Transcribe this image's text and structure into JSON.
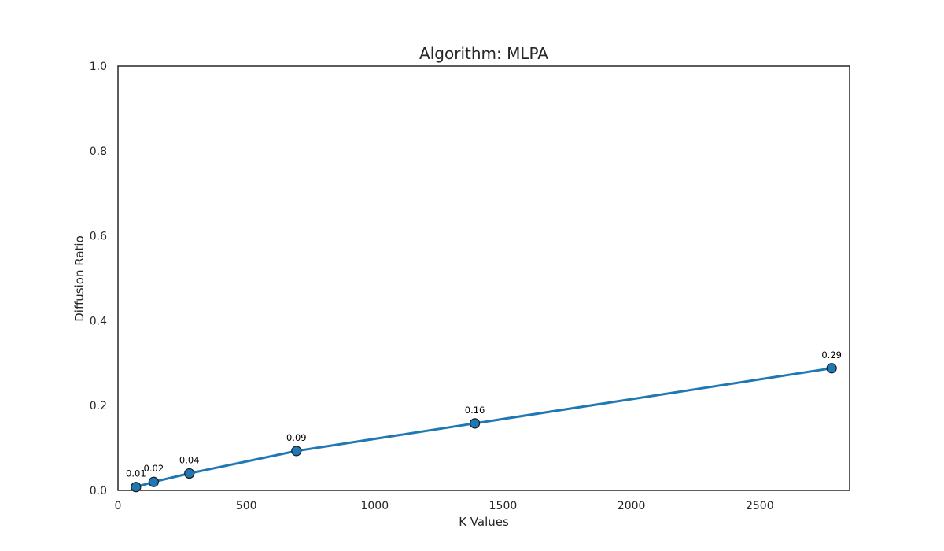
{
  "chart_data": {
    "type": "line",
    "title": "Algorithm: MLPA",
    "xlabel": "K Values",
    "ylabel": "Diffusion Ratio",
    "x": [
      70,
      139,
      278,
      695,
      1390,
      2780
    ],
    "y": [
      0.008,
      0.02,
      0.04,
      0.093,
      0.158,
      0.288
    ],
    "data_labels": [
      "0.01",
      "0.02",
      "0.04",
      "0.09",
      "0.16",
      "0.29"
    ],
    "xlim": [
      0,
      2850
    ],
    "ylim": [
      0,
      1.0
    ],
    "xticks": [
      0,
      500,
      1000,
      1500,
      2000,
      2500
    ],
    "xtick_labels": [
      "0",
      "500",
      "1000",
      "1500",
      "2000",
      "2500"
    ],
    "yticks": [
      0,
      0.2,
      0.4,
      0.6,
      0.8,
      1.0
    ],
    "ytick_labels": [
      "0.0",
      "0.2",
      "0.4",
      "0.6",
      "0.8",
      "1.0"
    ],
    "grid": false,
    "line_color": "#1f77b4",
    "marker_color": "#1f77b4",
    "marker_edge_color": "#1a1a1a"
  }
}
